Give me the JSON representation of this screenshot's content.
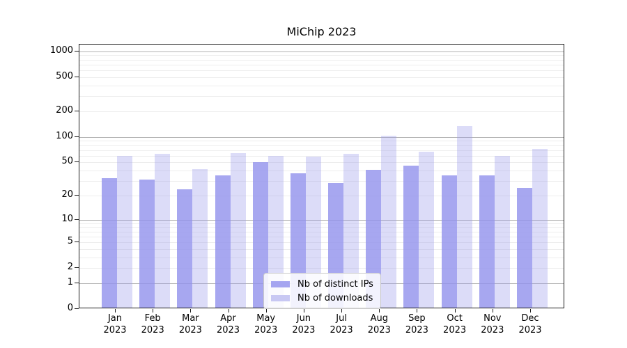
{
  "chart_data": {
    "type": "bar",
    "title": "MiChip 2023",
    "categories": [
      "Jan",
      "Feb",
      "Mar",
      "Apr",
      "May",
      "Jun",
      "Jul",
      "Aug",
      "Sep",
      "Oct",
      "Nov",
      "Dec"
    ],
    "year_label": "2023",
    "series": [
      {
        "name": "Nb of distinct IPs",
        "values": [
          31,
          30,
          23,
          34,
          48,
          36,
          27,
          39,
          44,
          34,
          34,
          24
        ],
        "color": "rgba(148,148,237,0.82)",
        "legend_swatch_color": "#a5a5f0"
      },
      {
        "name": "Nb of downloads",
        "values": [
          57,
          61,
          40,
          62,
          57,
          56,
          61,
          100,
          65,
          130,
          58,
          70
        ],
        "color": "rgba(155,155,235,0.35)",
        "legend_swatch_color": "#c8c8f3"
      }
    ],
    "yscale": "log1p",
    "yticks": [
      0,
      1,
      2,
      5,
      10,
      20,
      50,
      100,
      200,
      500,
      1000
    ],
    "minor_gridlines": [
      2,
      3,
      4,
      5,
      6,
      7,
      8,
      9,
      20,
      30,
      40,
      50,
      60,
      70,
      80,
      90,
      200,
      300,
      400,
      500,
      600,
      700,
      800,
      900
    ],
    "major_gridlines": [
      1,
      10,
      100,
      1000
    ],
    "ylim": [
      0,
      1200
    ],
    "grid": "both",
    "legend_position": "lower-center",
    "colors": {
      "major_grid": "#b3b3b3",
      "minor_grid": "#ededed",
      "spine": "#1a1a1a",
      "background": "#ffffff"
    }
  }
}
